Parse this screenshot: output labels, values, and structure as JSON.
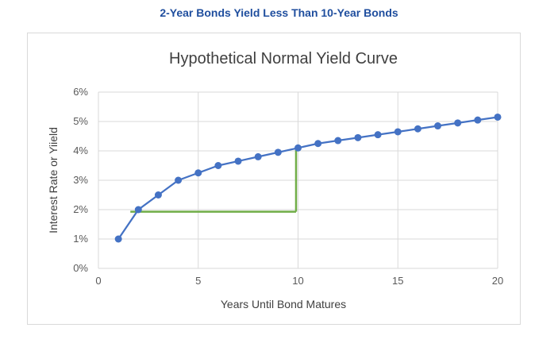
{
  "header": {
    "text": "2-Year Bonds Yield Less Than 10-Year Bonds"
  },
  "chart_data": {
    "type": "line",
    "title": "Hypothetical Normal Yield Curve",
    "xlabel": "Years Until Bond Matures",
    "ylabel": "Interest Rate or Yiield",
    "xlim": [
      0,
      20
    ],
    "ylim": [
      0,
      6
    ],
    "x_ticks": [
      0,
      5,
      10,
      15,
      20
    ],
    "x_tick_labels": [
      "0",
      "5",
      "10",
      "15",
      "20"
    ],
    "y_ticks": [
      0,
      1,
      2,
      3,
      4,
      5,
      6
    ],
    "y_tick_labels": [
      "0%",
      "1%",
      "2%",
      "3%",
      "4%",
      "5%",
      "6%"
    ],
    "grid": true,
    "legend": "none",
    "series": [
      {
        "color": "#4472c4",
        "x": [
          1,
          2,
          3,
          4,
          5,
          6,
          7,
          8,
          9,
          10,
          11,
          12,
          13,
          14,
          15,
          16,
          17,
          18,
          19,
          20
        ],
        "values": [
          1.0,
          2.0,
          2.5,
          3.0,
          3.25,
          3.5,
          3.65,
          3.8,
          3.95,
          4.1,
          4.25,
          4.35,
          4.45,
          4.55,
          4.65,
          4.75,
          4.85,
          4.95,
          5.05,
          5.15
        ]
      }
    ],
    "annotation": {
      "color": "#70ad47",
      "horizontal": {
        "x_from": 1.6,
        "x_to": 9.9,
        "y": 1.93
      },
      "vertical": {
        "x": 9.9,
        "y_from": 1.93,
        "y_to": 4.1
      }
    }
  }
}
